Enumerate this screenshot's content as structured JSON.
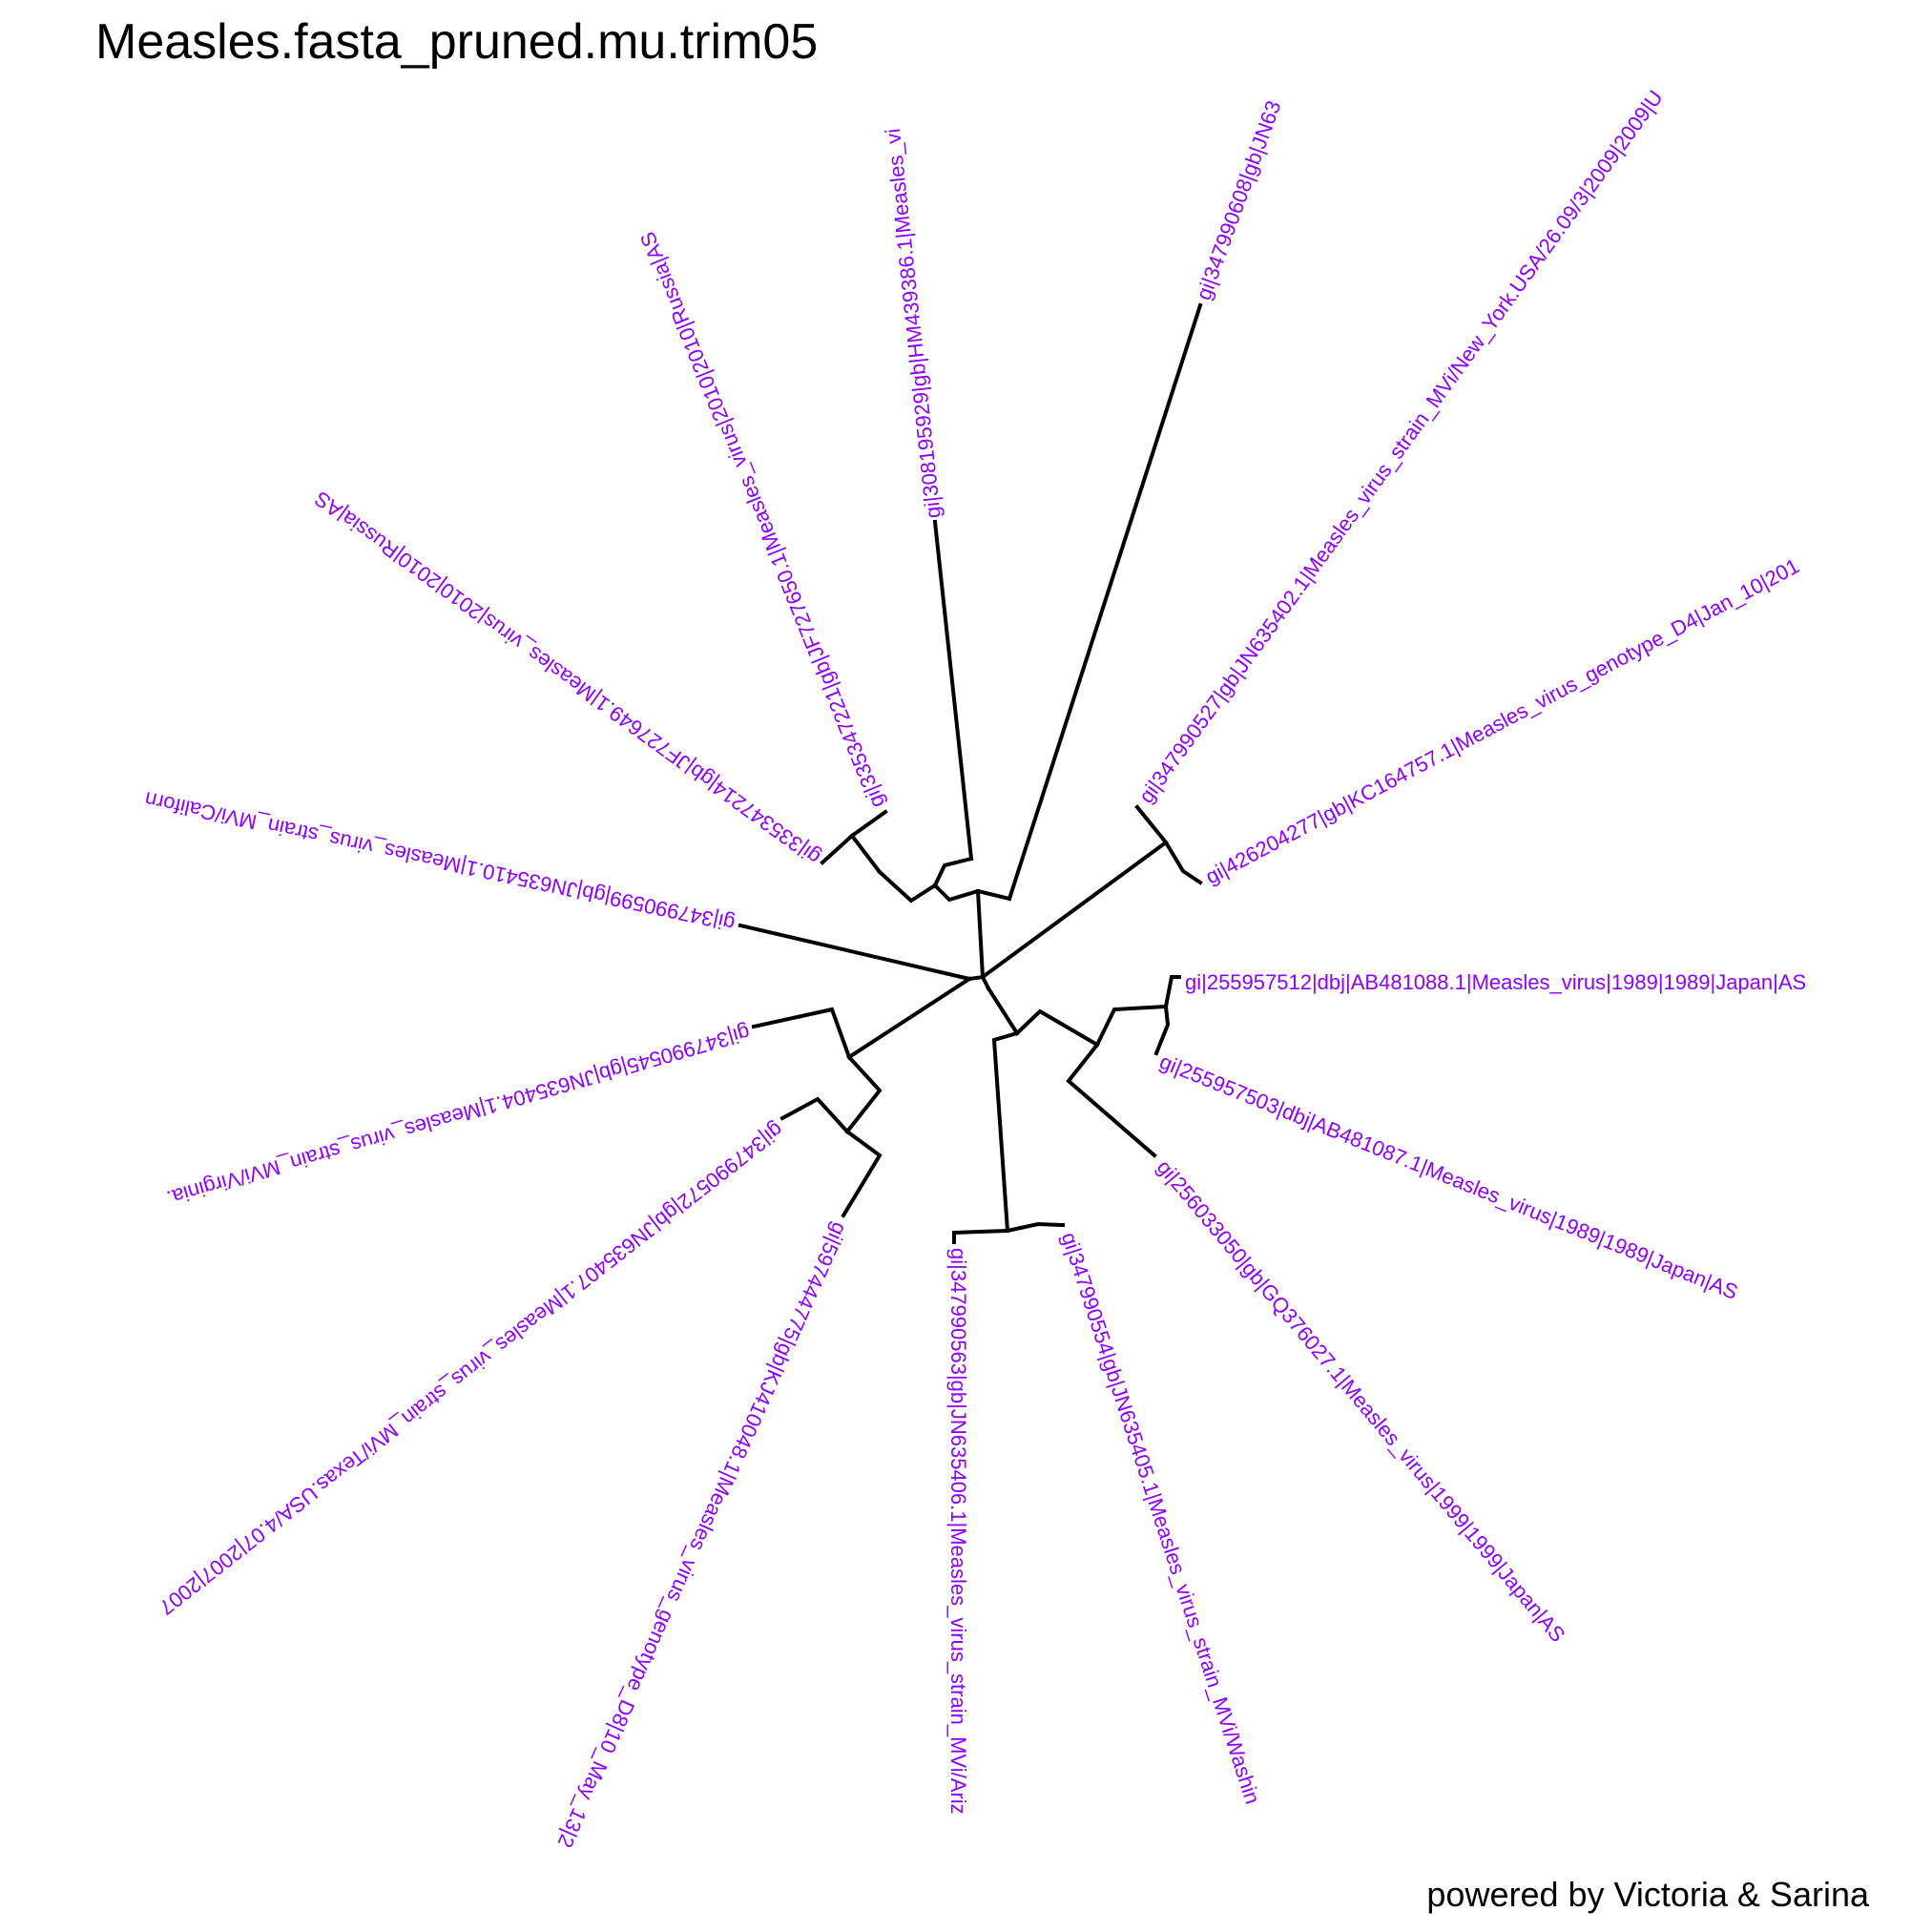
{
  "title": "Measles.fasta_pruned.mu.trim05",
  "credit": "powered by Victoria & Sarina",
  "label_color": "#8B00FF",
  "tree_type": "unrooted phylogenetic tree",
  "tips": [
    "gi|347990608|gb|JN63",
    "gi|347990527|gb|JN635402.1|Measles_virus_strain_MVi/New_York.USA/26.09/3|2009|2009|U",
    "gi|426204277|gb|KC164757.1|Measles_virus_genotype_D4|Jan_10|201",
    "gi|255957512|dbj|AB481088.1|Measles_virus|1989|1989|Japan|AS",
    "gi|255957503|dbj|AB481087.1|Measles_virus|1989|1989|Japan|AS",
    "gi|256033050|gb|GQ376027.1|Measles_virus|1999|1999|Japan|AS",
    "gi|347990554|gb|JN635405.1|Measles_virus_strain_MVi/Washin",
    "gi|347990563|gb|JN635406.1|Measles_virus_strain_MVi/Ariz",
    "gi|597444775|gb|KJ410048.1|Measles_virus_genotype_D8|10_May_13|2",
    "gi|347990572|gb|JN635407.1|Measles_virus_strain_MVi/Texas.USA/4.07|2007|2007",
    "gi|347990545|gb|JN635404.1|Measles_virus_strain_MVi/Virginia.",
    "gi|347990599|gb|JN635410.1|Measles_virus_strain_MVi/Californ",
    "gi|335347214|gb|JF727649.1|Measles_virus|2010|2010|Russia|AS",
    "gi|335347221|gb|JF727650.1|Measles_virus|2010|2010|Russia|AS",
    "gi|308195929|gb|HM439386.1|Measles_vi"
  ]
}
